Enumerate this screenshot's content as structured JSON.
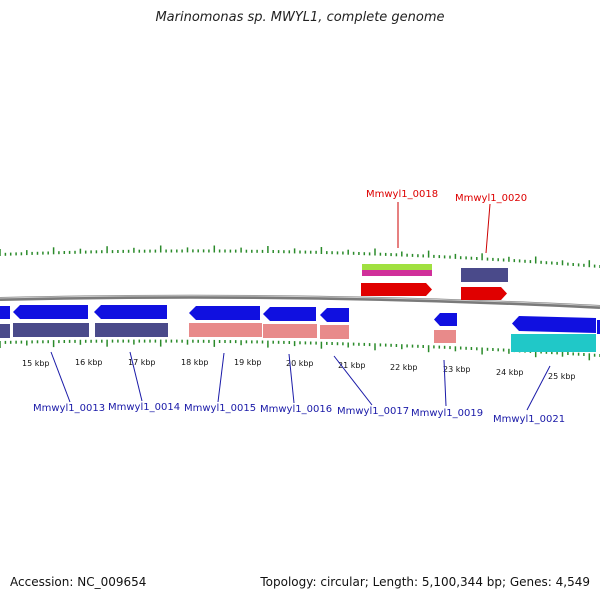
{
  "title": "Marinomonas sp. MWYL1, complete genome",
  "footer": {
    "accession": "Accession: NC_009654",
    "summary": "Topology: circular; Length: 5,100,344 bp; Genes: 4,549"
  },
  "colors": {
    "forward_gene": "#1010e0",
    "reverse_gene": "#e00000",
    "cds_forward": "#4a4a8a",
    "cds_pink": "#e88a8a",
    "rna_green": "#a0e040",
    "rna_magenta": "#d0309a",
    "cyan": "#20c8c8",
    "tick": "#2a8a2a",
    "backbone": "#888888"
  },
  "scale_labels": [
    "15 kbp",
    "16 kbp",
    "17 kbp",
    "18 kbp",
    "19 kbp",
    "20 kbp",
    "21 kbp",
    "22 kbp",
    "23 kbp",
    "24 kbp",
    "25 kbp"
  ],
  "labels_top": [
    "Mmwyl1_0018",
    "Mmwyl1_0020"
  ],
  "labels_bottom": [
    "Mmwyl1_0013",
    "Mmwyl1_0014",
    "Mmwyl1_0015",
    "Mmwyl1_0016",
    "Mmwyl1_0017",
    "Mmwyl1_0019",
    "Mmwyl1_0021"
  ]
}
